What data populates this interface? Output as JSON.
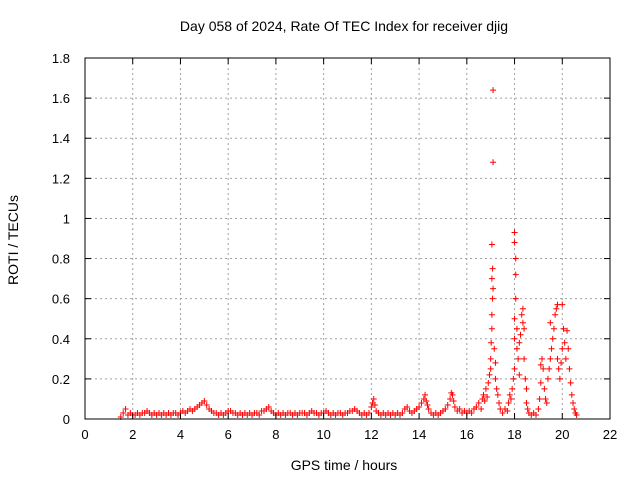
{
  "chart_data": {
    "type": "scatter",
    "title": "Day 058 of 2024, Rate Of TEC Index for receiver djig",
    "xlabel": "GPS time / hours",
    "ylabel": "ROTI / TECUs",
    "xlim": [
      0,
      22
    ],
    "ylim": [
      0,
      1.8
    ],
    "x_ticks": [
      0,
      2,
      4,
      6,
      8,
      10,
      12,
      14,
      16,
      18,
      20,
      22
    ],
    "y_ticks": [
      0,
      0.2,
      0.4,
      0.6,
      0.8,
      1,
      1.2,
      1.4,
      1.6,
      1.8
    ],
    "x_tick_labels": [
      "0",
      "2",
      "4",
      "6",
      "8",
      "10",
      "12",
      "14",
      "16",
      "18",
      "20",
      "22"
    ],
    "y_tick_labels": [
      "0",
      "0.2",
      "0.4",
      "0.6",
      "0.8",
      "1",
      "1.2",
      "1.4",
      "1.6",
      "1.8"
    ],
    "grid": true,
    "marker": "+",
    "marker_color": "#ff0000",
    "series": [
      {
        "name": "ROTI",
        "points": [
          [
            1.5,
            0.01
          ],
          [
            1.6,
            0.03
          ],
          [
            1.7,
            0.05
          ],
          [
            1.8,
            0.02
          ],
          [
            1.9,
            0.03
          ],
          [
            2.0,
            0.02
          ],
          [
            2.1,
            0.02
          ],
          [
            2.2,
            0.03
          ],
          [
            2.3,
            0.02
          ],
          [
            2.4,
            0.03
          ],
          [
            2.5,
            0.03
          ],
          [
            2.6,
            0.04
          ],
          [
            2.7,
            0.03
          ],
          [
            2.8,
            0.02
          ],
          [
            2.9,
            0.03
          ],
          [
            3.0,
            0.02
          ],
          [
            3.1,
            0.03
          ],
          [
            3.2,
            0.02
          ],
          [
            3.3,
            0.03
          ],
          [
            3.4,
            0.02
          ],
          [
            3.5,
            0.03
          ],
          [
            3.6,
            0.02
          ],
          [
            3.7,
            0.03
          ],
          [
            3.8,
            0.03
          ],
          [
            3.9,
            0.02
          ],
          [
            4.0,
            0.03
          ],
          [
            4.1,
            0.04
          ],
          [
            4.2,
            0.03
          ],
          [
            4.3,
            0.04
          ],
          [
            4.4,
            0.05
          ],
          [
            4.5,
            0.04
          ],
          [
            4.6,
            0.05
          ],
          [
            4.7,
            0.06
          ],
          [
            4.8,
            0.07
          ],
          [
            4.9,
            0.08
          ],
          [
            5.0,
            0.09
          ],
          [
            5.1,
            0.07
          ],
          [
            5.2,
            0.05
          ],
          [
            5.3,
            0.04
          ],
          [
            5.4,
            0.03
          ],
          [
            5.5,
            0.03
          ],
          [
            5.6,
            0.02
          ],
          [
            5.7,
            0.03
          ],
          [
            5.8,
            0.02
          ],
          [
            5.9,
            0.03
          ],
          [
            6.0,
            0.04
          ],
          [
            6.1,
            0.04
          ],
          [
            6.2,
            0.03
          ],
          [
            6.3,
            0.03
          ],
          [
            6.4,
            0.02
          ],
          [
            6.5,
            0.03
          ],
          [
            6.6,
            0.02
          ],
          [
            6.7,
            0.03
          ],
          [
            6.8,
            0.02
          ],
          [
            6.9,
            0.03
          ],
          [
            7.0,
            0.02
          ],
          [
            7.1,
            0.03
          ],
          [
            7.2,
            0.03
          ],
          [
            7.3,
            0.02
          ],
          [
            7.4,
            0.04
          ],
          [
            7.5,
            0.04
          ],
          [
            7.6,
            0.05
          ],
          [
            7.7,
            0.06
          ],
          [
            7.8,
            0.04
          ],
          [
            7.9,
            0.03
          ],
          [
            8.0,
            0.02
          ],
          [
            8.1,
            0.03
          ],
          [
            8.2,
            0.02
          ],
          [
            8.3,
            0.03
          ],
          [
            8.4,
            0.02
          ],
          [
            8.5,
            0.03
          ],
          [
            8.6,
            0.03
          ],
          [
            8.7,
            0.02
          ],
          [
            8.8,
            0.03
          ],
          [
            8.9,
            0.02
          ],
          [
            9.0,
            0.03
          ],
          [
            9.1,
            0.03
          ],
          [
            9.2,
            0.03
          ],
          [
            9.3,
            0.02
          ],
          [
            9.4,
            0.03
          ],
          [
            9.5,
            0.04
          ],
          [
            9.6,
            0.03
          ],
          [
            9.7,
            0.03
          ],
          [
            9.8,
            0.02
          ],
          [
            9.9,
            0.03
          ],
          [
            10.0,
            0.03
          ],
          [
            10.1,
            0.04
          ],
          [
            10.2,
            0.03
          ],
          [
            10.3,
            0.02
          ],
          [
            10.4,
            0.03
          ],
          [
            10.5,
            0.02
          ],
          [
            10.6,
            0.03
          ],
          [
            10.7,
            0.03
          ],
          [
            10.8,
            0.02
          ],
          [
            10.9,
            0.03
          ],
          [
            11.0,
            0.03
          ],
          [
            11.1,
            0.04
          ],
          [
            11.2,
            0.04
          ],
          [
            11.3,
            0.05
          ],
          [
            11.4,
            0.04
          ],
          [
            11.5,
            0.03
          ],
          [
            11.6,
            0.02
          ],
          [
            11.7,
            0.03
          ],
          [
            11.8,
            0.02
          ],
          [
            11.9,
            0.03
          ],
          [
            12.0,
            0.06
          ],
          [
            12.05,
            0.08
          ],
          [
            12.1,
            0.1
          ],
          [
            12.15,
            0.07
          ],
          [
            12.2,
            0.04
          ],
          [
            12.3,
            0.03
          ],
          [
            12.4,
            0.02
          ],
          [
            12.5,
            0.03
          ],
          [
            12.6,
            0.02
          ],
          [
            12.7,
            0.03
          ],
          [
            12.8,
            0.02
          ],
          [
            12.9,
            0.03
          ],
          [
            13.0,
            0.02
          ],
          [
            13.1,
            0.03
          ],
          [
            13.2,
            0.02
          ],
          [
            13.3,
            0.03
          ],
          [
            13.4,
            0.05
          ],
          [
            13.5,
            0.06
          ],
          [
            13.6,
            0.04
          ],
          [
            13.7,
            0.03
          ],
          [
            13.8,
            0.04
          ],
          [
            13.9,
            0.05
          ],
          [
            14.0,
            0.06
          ],
          [
            14.1,
            0.08
          ],
          [
            14.2,
            0.1
          ],
          [
            14.25,
            0.12
          ],
          [
            14.3,
            0.09
          ],
          [
            14.35,
            0.07
          ],
          [
            14.4,
            0.05
          ],
          [
            14.5,
            0.03
          ],
          [
            14.6,
            0.02
          ],
          [
            14.7,
            0.03
          ],
          [
            14.8,
            0.02
          ],
          [
            14.9,
            0.03
          ],
          [
            15.0,
            0.04
          ],
          [
            15.1,
            0.05
          ],
          [
            15.2,
            0.07
          ],
          [
            15.3,
            0.1
          ],
          [
            15.35,
            0.13
          ],
          [
            15.4,
            0.12
          ],
          [
            15.45,
            0.09
          ],
          [
            15.5,
            0.06
          ],
          [
            15.6,
            0.04
          ],
          [
            15.7,
            0.05
          ],
          [
            15.8,
            0.03
          ],
          [
            15.9,
            0.04
          ],
          [
            16.0,
            0.03
          ],
          [
            16.1,
            0.04
          ],
          [
            16.2,
            0.03
          ],
          [
            16.3,
            0.05
          ],
          [
            16.4,
            0.06
          ],
          [
            16.5,
            0.08
          ],
          [
            16.6,
            0.05
          ],
          [
            16.65,
            0.1
          ],
          [
            16.7,
            0.12
          ],
          [
            16.75,
            0.09
          ],
          [
            16.8,
            0.15
          ],
          [
            16.85,
            0.11
          ],
          [
            16.9,
            0.18
          ],
          [
            16.95,
            0.22
          ],
          [
            17.0,
            0.25
          ],
          [
            17.0,
            0.3
          ],
          [
            17.02,
            0.38
          ],
          [
            17.05,
            0.45
          ],
          [
            17.05,
            0.52
          ],
          [
            17.08,
            0.6
          ],
          [
            17.1,
            0.65
          ],
          [
            17.05,
            0.7
          ],
          [
            17.08,
            0.75
          ],
          [
            17.05,
            0.87
          ],
          [
            17.1,
            1.28
          ],
          [
            17.1,
            1.64
          ],
          [
            17.15,
            0.35
          ],
          [
            17.2,
            0.2
          ],
          [
            17.2,
            0.28
          ],
          [
            17.25,
            0.15
          ],
          [
            17.3,
            0.12
          ],
          [
            17.35,
            0.08
          ],
          [
            17.4,
            0.05
          ],
          [
            17.5,
            0.03
          ],
          [
            17.6,
            0.05
          ],
          [
            17.7,
            0.04
          ],
          [
            17.75,
            0.08
          ],
          [
            17.8,
            0.12
          ],
          [
            17.85,
            0.1
          ],
          [
            17.9,
            0.15
          ],
          [
            17.95,
            0.2
          ],
          [
            18.0,
            0.25
          ],
          [
            18.0,
            0.4
          ],
          [
            18.0,
            0.5
          ],
          [
            18.05,
            0.6
          ],
          [
            18.05,
            0.72
          ],
          [
            18.05,
            0.8
          ],
          [
            18.0,
            0.88
          ],
          [
            18.0,
            0.93
          ],
          [
            18.1,
            0.35
          ],
          [
            18.1,
            0.45
          ],
          [
            18.15,
            0.3
          ],
          [
            18.2,
            0.22
          ],
          [
            18.2,
            0.38
          ],
          [
            18.25,
            0.42
          ],
          [
            18.3,
            0.52
          ],
          [
            18.35,
            0.55
          ],
          [
            18.35,
            0.48
          ],
          [
            18.4,
            0.45
          ],
          [
            18.4,
            0.3
          ],
          [
            18.45,
            0.2
          ],
          [
            18.5,
            0.15
          ],
          [
            18.5,
            0.08
          ],
          [
            18.55,
            0.05
          ],
          [
            18.6,
            0.03
          ],
          [
            18.7,
            0.02
          ],
          [
            18.8,
            0.03
          ],
          [
            18.9,
            0.02
          ],
          [
            19.0,
            0.05
          ],
          [
            19.05,
            0.1
          ],
          [
            19.1,
            0.18
          ],
          [
            19.1,
            0.27
          ],
          [
            19.15,
            0.3
          ],
          [
            19.2,
            0.25
          ],
          [
            19.25,
            0.15
          ],
          [
            19.3,
            0.1
          ],
          [
            19.35,
            0.08
          ],
          [
            19.4,
            0.2
          ],
          [
            19.45,
            0.25
          ],
          [
            19.5,
            0.3
          ],
          [
            19.5,
            0.48
          ],
          [
            19.55,
            0.35
          ],
          [
            19.6,
            0.4
          ],
          [
            19.65,
            0.45
          ],
          [
            19.7,
            0.52
          ],
          [
            19.75,
            0.55
          ],
          [
            19.8,
            0.57
          ],
          [
            19.8,
            0.3
          ],
          [
            19.85,
            0.25
          ],
          [
            19.9,
            0.2
          ],
          [
            19.95,
            0.28
          ],
          [
            20.0,
            0.35
          ],
          [
            20.0,
            0.57
          ],
          [
            20.05,
            0.45
          ],
          [
            20.1,
            0.38
          ],
          [
            20.15,
            0.3
          ],
          [
            20.2,
            0.44
          ],
          [
            20.25,
            0.35
          ],
          [
            20.3,
            0.25
          ],
          [
            20.35,
            0.18
          ],
          [
            20.4,
            0.12
          ],
          [
            20.45,
            0.08
          ],
          [
            20.5,
            0.05
          ],
          [
            20.55,
            0.03
          ],
          [
            20.6,
            0.02
          ]
        ]
      }
    ]
  }
}
